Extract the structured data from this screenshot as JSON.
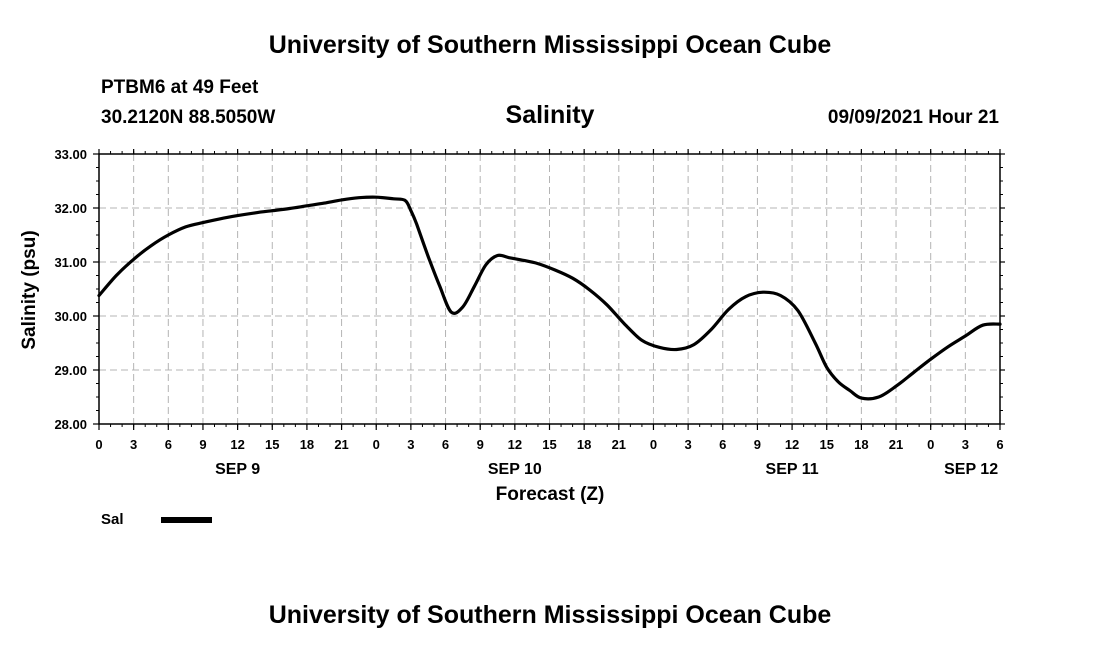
{
  "header": {
    "title_top": "University of Southern Mississippi Ocean Cube",
    "station": "PTBM6 at 49 Feet",
    "coords": "30.2120N  88.5050W",
    "subtitle": "Salinity",
    "datetime": "09/09/2021 Hour 21"
  },
  "footer": {
    "title_bottom": "University of Southern Mississippi Ocean Cube"
  },
  "legend": {
    "label": "Sal"
  },
  "chart_data": {
    "type": "line",
    "title": "Salinity",
    "xlabel": "Forecast (Z)",
    "ylabel": "Salinity (psu)",
    "xlim": [
      0,
      78
    ],
    "ylim": [
      28.0,
      33.0
    ],
    "yticks": [
      "28.00",
      "29.00",
      "30.00",
      "31.00",
      "32.00",
      "33.00"
    ],
    "xtick_hours": [
      0,
      3,
      6,
      9,
      12,
      15,
      18,
      21,
      24,
      27,
      30,
      33,
      36,
      39,
      42,
      45,
      48,
      51,
      54,
      57,
      60,
      63,
      66,
      69,
      72,
      75,
      78
    ],
    "xtick_labels": [
      "0",
      "3",
      "6",
      "9",
      "12",
      "15",
      "18",
      "21",
      "0",
      "3",
      "6",
      "9",
      "12",
      "15",
      "18",
      "21",
      "0",
      "3",
      "6",
      "9",
      "12",
      "15",
      "18",
      "21",
      "0",
      "3",
      "6"
    ],
    "date_labels": [
      {
        "hour": 12,
        "label": "SEP 9"
      },
      {
        "hour": 36,
        "label": "SEP 10"
      },
      {
        "hour": 60,
        "label": "SEP 11"
      },
      {
        "hour": 75.5,
        "label": "SEP 12"
      }
    ],
    "grid": true,
    "legend_position": "bottom-left",
    "series": [
      {
        "name": "Sal",
        "x": [
          0,
          1.5,
          3,
          4.5,
          6,
          7.5,
          9,
          10.5,
          12,
          13.5,
          15,
          16.5,
          18,
          19.5,
          21,
          22.5,
          24,
          25.5,
          26.5,
          27,
          27.5,
          28.5,
          29.5,
          30.5,
          31.5,
          32.5,
          33.5,
          34.5,
          35.5,
          36.5,
          38,
          39.5,
          41,
          42.5,
          44,
          45.5,
          47,
          48.5,
          50,
          51.5,
          53,
          54.5,
          56,
          57.5,
          59,
          60.5,
          62,
          63,
          64,
          65,
          66,
          67.5,
          69,
          70.5,
          72,
          73.5,
          75,
          76.5,
          78
        ],
        "y": [
          30.38,
          30.75,
          31.05,
          31.3,
          31.5,
          31.65,
          31.73,
          31.8,
          31.86,
          31.91,
          31.95,
          31.99,
          32.04,
          32.09,
          32.15,
          32.19,
          32.2,
          32.17,
          32.14,
          31.95,
          31.7,
          31.1,
          30.55,
          30.07,
          30.17,
          30.55,
          30.95,
          31.12,
          31.08,
          31.04,
          30.97,
          30.85,
          30.7,
          30.48,
          30.2,
          29.85,
          29.55,
          29.42,
          29.38,
          29.47,
          29.75,
          30.12,
          30.36,
          30.44,
          30.38,
          30.1,
          29.5,
          29.05,
          28.78,
          28.62,
          28.48,
          28.5,
          28.7,
          28.95,
          29.2,
          29.43,
          29.63,
          29.83,
          29.85
        ]
      }
    ]
  }
}
